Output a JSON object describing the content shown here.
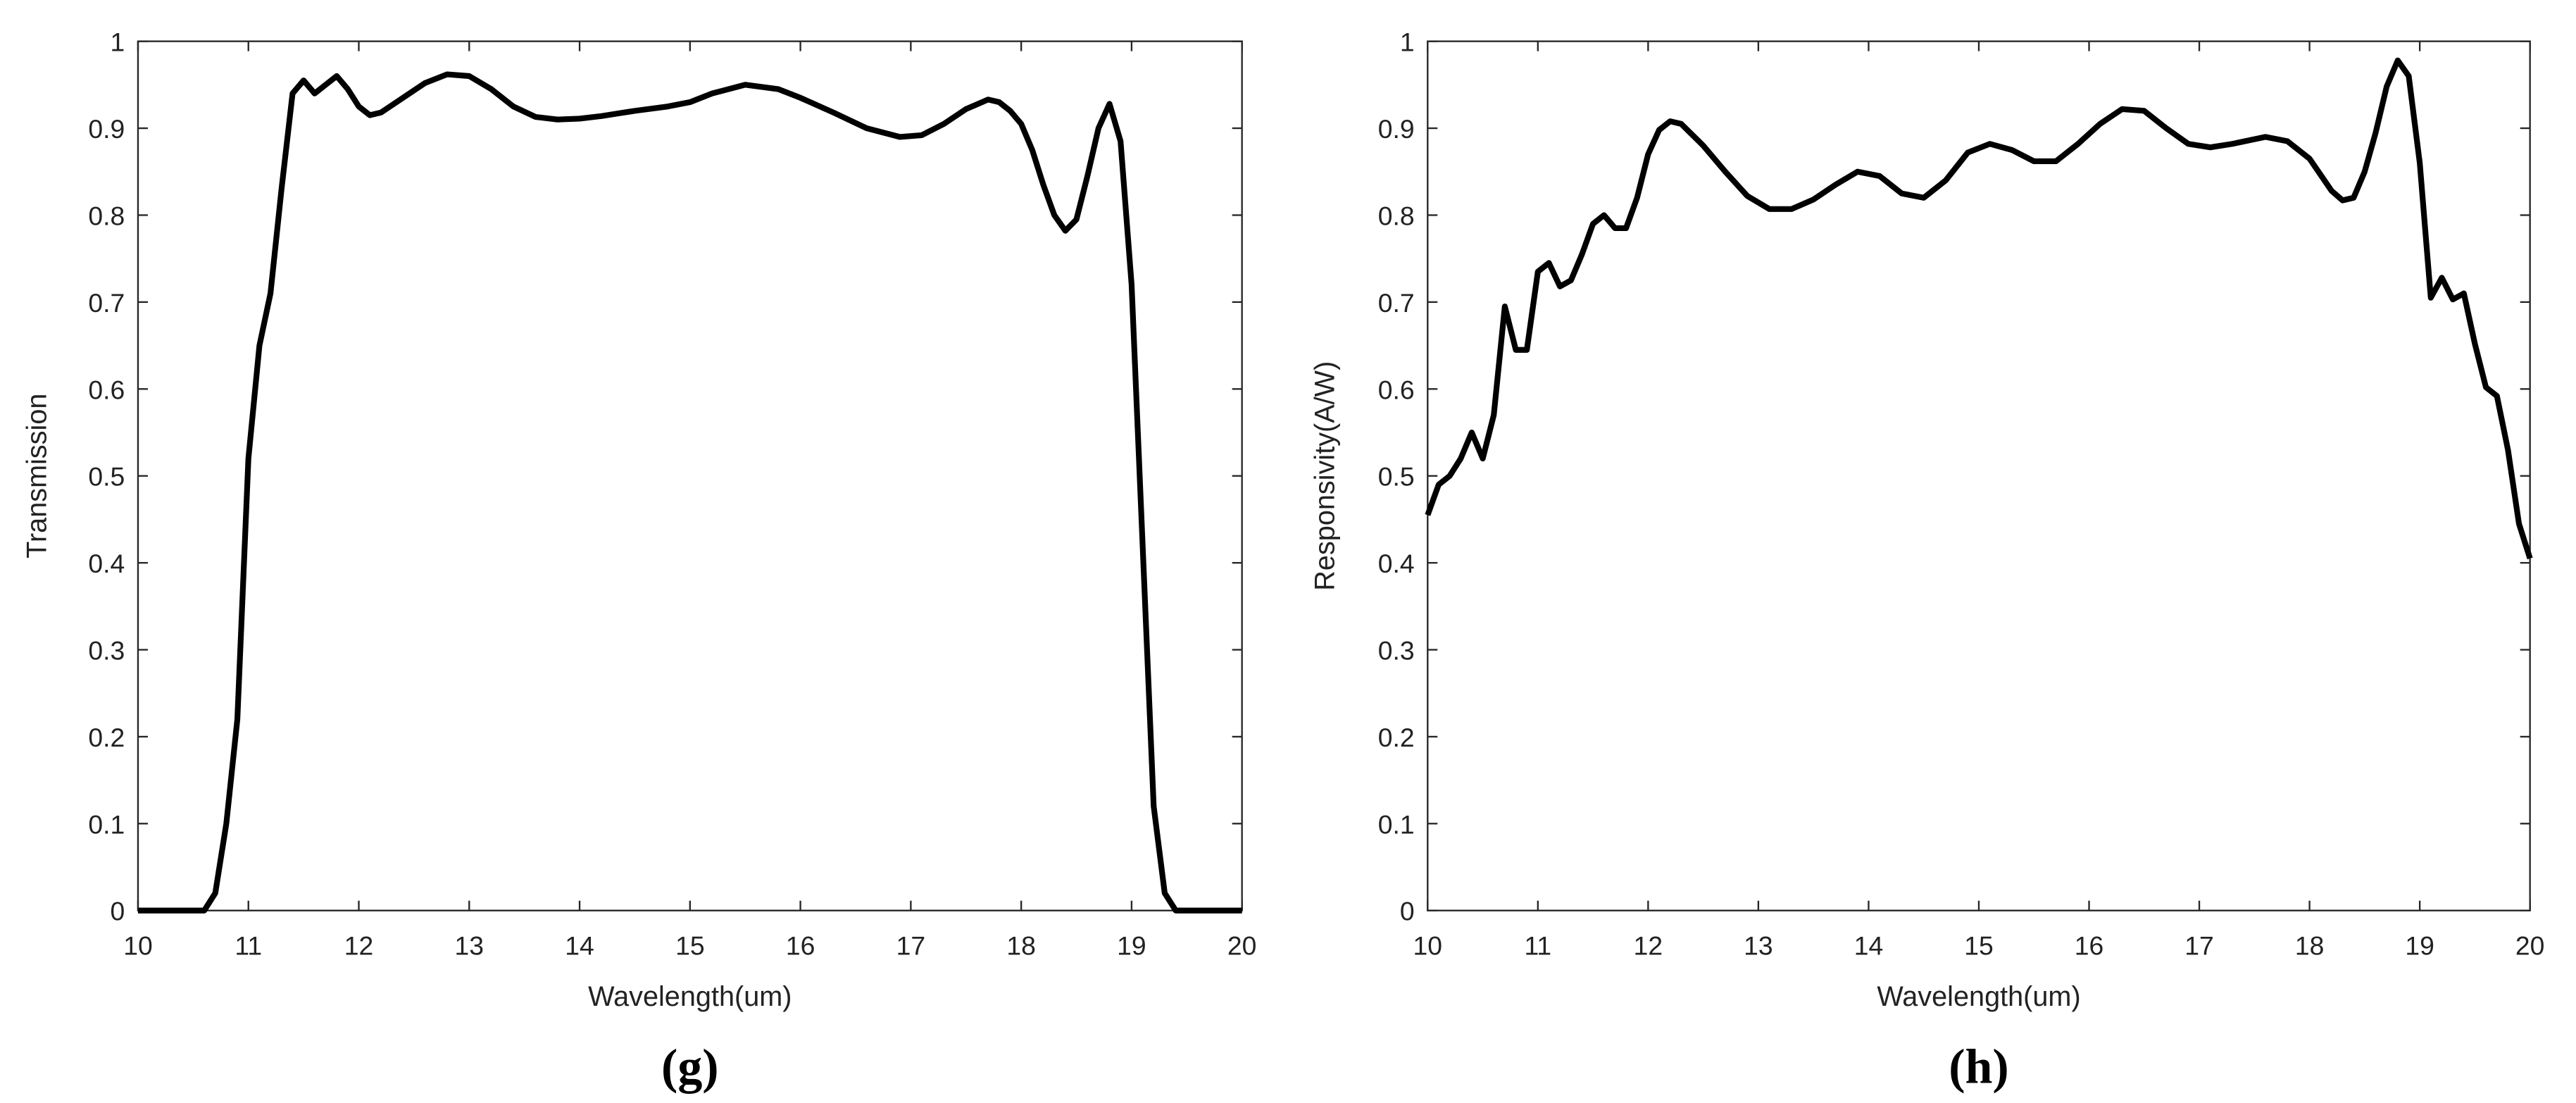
{
  "chart_data": [
    {
      "type": "line",
      "caption": "(g)",
      "x_label": "Wavelength(um)",
      "y_label": "Transmission",
      "color": "#000000",
      "x": [
        10,
        10.5,
        10.6,
        10.7,
        10.8,
        10.9,
        11.0,
        11.1,
        11.2,
        11.3,
        11.4,
        11.5,
        11.6,
        11.7,
        11.8,
        11.9,
        12.0,
        12.1,
        12.2,
        12.4,
        12.6,
        12.8,
        13.0,
        13.2,
        13.4,
        13.6,
        13.8,
        14.0,
        14.2,
        14.5,
        14.8,
        15.0,
        15.2,
        15.5,
        15.8,
        16.0,
        16.3,
        16.6,
        16.9,
        17.1,
        17.3,
        17.5,
        17.7,
        17.8,
        17.9,
        18.0,
        18.1,
        18.2,
        18.3,
        18.4,
        18.5,
        18.6,
        18.7,
        18.8,
        18.9,
        19.0,
        19.1,
        19.2,
        19.3,
        19.4,
        20
      ],
      "y": [
        0,
        0,
        0,
        0.02,
        0.1,
        0.22,
        0.52,
        0.65,
        0.71,
        0.83,
        0.94,
        0.955,
        0.94,
        0.95,
        0.96,
        0.945,
        0.925,
        0.915,
        0.918,
        0.935,
        0.952,
        0.962,
        0.96,
        0.945,
        0.925,
        0.913,
        0.91,
        0.911,
        0.914,
        0.92,
        0.925,
        0.93,
        0.94,
        0.95,
        0.945,
        0.935,
        0.918,
        0.9,
        0.89,
        0.892,
        0.905,
        0.922,
        0.933,
        0.93,
        0.92,
        0.905,
        0.875,
        0.835,
        0.8,
        0.782,
        0.795,
        0.845,
        0.9,
        0.928,
        0.885,
        0.72,
        0.42,
        0.12,
        0.02,
        0,
        0
      ],
      "xlim": [
        10,
        20
      ],
      "xticks": [
        10,
        11,
        12,
        13,
        14,
        15,
        16,
        17,
        18,
        19,
        20
      ],
      "ylim": [
        0,
        1
      ],
      "yticks": [
        0,
        0.1,
        0.2,
        0.3,
        0.4,
        0.5,
        0.6,
        0.7,
        0.8,
        0.9,
        1
      ]
    },
    {
      "type": "line",
      "caption": "(h)",
      "x_label": "Wavelength(um)",
      "y_label": "Responsivity(A/W)",
      "color": "#000000",
      "x": [
        10,
        10.1,
        10.2,
        10.3,
        10.4,
        10.5,
        10.6,
        10.7,
        10.8,
        10.9,
        11.0,
        11.1,
        11.2,
        11.3,
        11.4,
        11.5,
        11.6,
        11.7,
        11.8,
        11.9,
        12.0,
        12.1,
        12.2,
        12.3,
        12.5,
        12.7,
        12.9,
        13.1,
        13.3,
        13.5,
        13.7,
        13.9,
        14.1,
        14.3,
        14.5,
        14.7,
        14.9,
        15.1,
        15.3,
        15.5,
        15.7,
        15.9,
        16.1,
        16.3,
        16.5,
        16.7,
        16.9,
        17.1,
        17.3,
        17.6,
        17.8,
        18.0,
        18.2,
        18.3,
        18.4,
        18.5,
        18.6,
        18.7,
        18.8,
        18.9,
        19.0,
        19.1,
        19.2,
        19.3,
        19.4,
        19.5,
        19.6,
        19.7,
        19.8,
        19.9,
        20.0
      ],
      "y": [
        0.455,
        0.49,
        0.5,
        0.52,
        0.55,
        0.52,
        0.57,
        0.695,
        0.645,
        0.645,
        0.735,
        0.745,
        0.718,
        0.725,
        0.755,
        0.79,
        0.8,
        0.785,
        0.785,
        0.82,
        0.87,
        0.898,
        0.908,
        0.905,
        0.88,
        0.85,
        0.822,
        0.807,
        0.807,
        0.818,
        0.835,
        0.85,
        0.845,
        0.825,
        0.82,
        0.84,
        0.872,
        0.882,
        0.875,
        0.862,
        0.862,
        0.882,
        0.905,
        0.922,
        0.92,
        0.9,
        0.882,
        0.878,
        0.882,
        0.89,
        0.885,
        0.865,
        0.828,
        0.817,
        0.82,
        0.85,
        0.895,
        0.948,
        0.978,
        0.96,
        0.86,
        0.705,
        0.728,
        0.703,
        0.71,
        0.652,
        0.602,
        0.592,
        0.53,
        0.445,
        0.405
      ],
      "xlim": [
        10,
        20
      ],
      "xticks": [
        10,
        11,
        12,
        13,
        14,
        15,
        16,
        17,
        18,
        19,
        20
      ],
      "ylim": [
        0,
        1
      ],
      "yticks": [
        0,
        0.1,
        0.2,
        0.3,
        0.4,
        0.5,
        0.6,
        0.7,
        0.8,
        0.9,
        1
      ]
    }
  ]
}
